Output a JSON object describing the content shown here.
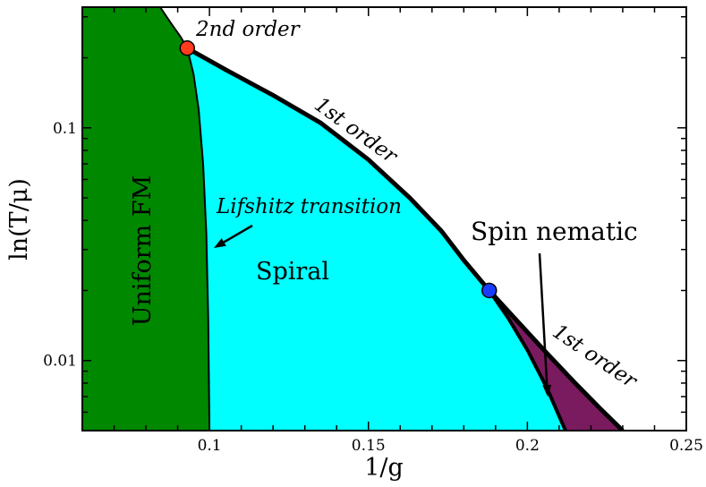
{
  "chart_data": {
    "type": "area",
    "xlabel": "1/g",
    "ylabel": "ln(T/μ)",
    "xlim": [
      0.06,
      0.25
    ],
    "ylim": [
      0.005,
      0.33
    ],
    "yscale": "log",
    "grid": false,
    "x_ticks": [
      0.1,
      0.15,
      0.2,
      0.25
    ],
    "x_tick_labels": [
      "0.1",
      "0.15",
      "0.2",
      "0.25"
    ],
    "y_ticks": [
      0.01,
      0.1
    ],
    "y_tick_labels": [
      "0.01",
      "0.1"
    ],
    "boundaries": {
      "lifshitz_line": {
        "x": [
          0.0845,
          0.088,
          0.091,
          0.093,
          0.095,
          0.0966,
          0.098,
          0.099,
          0.0996,
          0.1
        ],
        "y": [
          0.33,
          0.28,
          0.245,
          0.22,
          0.17,
          0.12,
          0.07,
          0.035,
          0.015,
          0.005
        ]
      },
      "first_order_upper": {
        "x": [
          0.093,
          0.105,
          0.12,
          0.135,
          0.15,
          0.163,
          0.173,
          0.18,
          0.188
        ],
        "y": [
          0.22,
          0.178,
          0.138,
          0.105,
          0.073,
          0.05,
          0.036,
          0.027,
          0.02
        ]
      },
      "first_order_lower": {
        "x": [
          0.188,
          0.197,
          0.206,
          0.215,
          0.223,
          0.23
        ],
        "y": [
          0.02,
          0.0147,
          0.0108,
          0.008,
          0.0062,
          0.005
        ]
      },
      "spiral_nematic_line": {
        "x": [
          0.188,
          0.194,
          0.2,
          0.206,
          0.212
        ],
        "y": [
          0.02,
          0.0152,
          0.0111,
          0.0077,
          0.005
        ]
      }
    },
    "regions": [
      {
        "label": "Uniform FM",
        "color": "#008800"
      },
      {
        "label": "Spiral",
        "color": "#00ffff"
      },
      {
        "label": "Spin nematic",
        "color": "#7a1a5f"
      }
    ],
    "points": [
      {
        "label": "2nd order",
        "x": 0.093,
        "y": 0.22,
        "color": "#ff3c1e"
      },
      {
        "label": "",
        "x": 0.188,
        "y": 0.02,
        "color": "#1a3cff"
      }
    ],
    "annotations": {
      "second_order": "2nd order",
      "first_order_upper": "1st order",
      "first_order_lower": "1st order",
      "lifshitz": "Lifshitz transition",
      "spin_nematic": "Spin nematic"
    }
  }
}
